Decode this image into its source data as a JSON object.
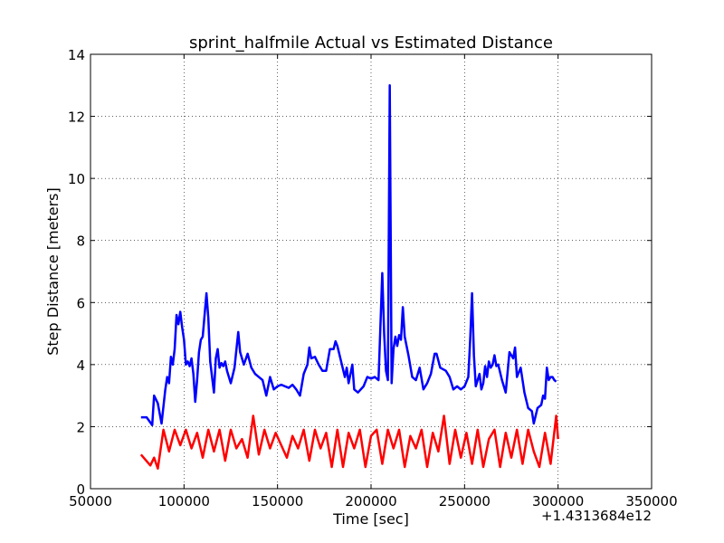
{
  "chart_data": {
    "type": "line",
    "title": "sprint_halfmile Actual vs Estimated Distance",
    "xlabel": "Time [sec]",
    "ylabel": "Step Distance [meters]",
    "x_offset_label": "+1.4313684e12",
    "xlim": [
      50000,
      350000
    ],
    "xticks": [
      50000,
      100000,
      150000,
      200000,
      250000,
      300000,
      350000
    ],
    "ylim": [
      0,
      14
    ],
    "yticks": [
      0,
      2,
      4,
      6,
      8,
      10,
      12,
      14
    ],
    "grid": true,
    "series": [
      {
        "color": "#0000ff",
        "x": [
          77000,
          80000,
          83000,
          84000,
          86000,
          88000,
          90000,
          91000,
          92000,
          93000,
          94000,
          95000,
          96000,
          97000,
          98000,
          99000,
          100000,
          101000,
          102000,
          103000,
          104000,
          105000,
          106000,
          107000,
          108000,
          109000,
          110000,
          111000,
          112000,
          113000,
          114000,
          116000,
          117000,
          118000,
          119000,
          120000,
          121000,
          122000,
          123000,
          125000,
          127000,
          129000,
          130000,
          132000,
          134000,
          136000,
          138000,
          140000,
          142000,
          144000,
          146000,
          148000,
          150000,
          152000,
          154000,
          156000,
          158000,
          160000,
          162000,
          164000,
          166000,
          167000,
          168000,
          170000,
          172000,
          174000,
          176000,
          178000,
          180000,
          181000,
          182000,
          184000,
          186000,
          187000,
          188000,
          190000,
          191000,
          193000,
          196000,
          198000,
          200000,
          202000,
          204000,
          206000,
          207000,
          208000,
          209000,
          210000,
          211000,
          212000,
          213000,
          214000,
          215000,
          216000,
          217000,
          218000,
          220000,
          222000,
          224000,
          226000,
          228000,
          230000,
          232000,
          234000,
          235000,
          237000,
          240000,
          242000,
          244000,
          246000,
          248000,
          250000,
          252000,
          253000,
          254000,
          255000,
          256000,
          258000,
          259000,
          260000,
          261000,
          262000,
          263000,
          264000,
          265000,
          266000,
          267000,
          268000,
          270000,
          272000,
          274000,
          276000,
          277000,
          278000,
          280000,
          282000,
          284000,
          286000,
          287000,
          289000,
          291000,
          292000,
          293000,
          294000,
          295000,
          296000,
          297000,
          298000,
          299000
        ],
        "values": [
          2.3,
          2.3,
          2.05,
          3.0,
          2.75,
          2.1,
          3.2,
          3.6,
          3.4,
          4.25,
          4.0,
          4.5,
          5.6,
          5.3,
          5.7,
          5.2,
          4.8,
          4.0,
          4.1,
          3.95,
          4.2,
          3.7,
          2.8,
          3.5,
          4.4,
          4.8,
          4.9,
          5.6,
          6.3,
          5.5,
          4.1,
          3.1,
          4.2,
          4.5,
          3.9,
          4.05,
          3.95,
          4.1,
          3.8,
          3.4,
          3.9,
          5.05,
          4.4,
          4.0,
          4.35,
          3.9,
          3.7,
          3.6,
          3.5,
          3.0,
          3.6,
          3.2,
          3.3,
          3.35,
          3.3,
          3.25,
          3.35,
          3.2,
          3.0,
          3.7,
          4.0,
          4.55,
          4.2,
          4.25,
          4.0,
          3.8,
          3.8,
          4.5,
          4.5,
          4.75,
          4.6,
          4.1,
          3.6,
          3.9,
          3.4,
          4.0,
          3.2,
          3.1,
          3.3,
          3.6,
          3.55,
          3.6,
          3.5,
          6.95,
          5.0,
          3.8,
          3.5,
          13.0,
          3.4,
          4.5,
          4.9,
          4.6,
          4.95,
          4.8,
          5.85,
          4.9,
          4.3,
          3.6,
          3.5,
          3.9,
          3.2,
          3.4,
          3.7,
          4.35,
          4.35,
          3.9,
          3.8,
          3.6,
          3.2,
          3.3,
          3.2,
          3.3,
          3.6,
          4.8,
          6.3,
          4.3,
          3.3,
          3.7,
          3.2,
          3.4,
          3.95,
          3.6,
          4.1,
          3.9,
          4.0,
          4.3,
          3.95,
          4.0,
          3.5,
          3.1,
          4.4,
          4.2,
          4.55,
          3.6,
          3.9,
          3.1,
          2.6,
          2.5,
          2.1,
          2.6,
          2.7,
          3.0,
          2.9,
          3.9,
          3.5,
          3.6,
          3.6,
          3.5,
          3.45
        ]
      },
      {
        "color": "#ff0000",
        "x": [
          77000,
          82000,
          84000,
          86000,
          89000,
          92000,
          95000,
          98000,
          101000,
          104000,
          107000,
          110000,
          113000,
          116000,
          119000,
          122000,
          125000,
          128000,
          131000,
          134000,
          137000,
          140000,
          143000,
          146000,
          149000,
          152000,
          155000,
          158000,
          161000,
          164000,
          167000,
          170000,
          173000,
          176000,
          179000,
          182000,
          185000,
          188000,
          191000,
          194000,
          197000,
          200000,
          203000,
          206000,
          209000,
          212000,
          215000,
          218000,
          221000,
          224000,
          227000,
          230000,
          233000,
          236000,
          239000,
          242000,
          245000,
          248000,
          251000,
          254000,
          257000,
          260000,
          263000,
          266000,
          269000,
          272000,
          275000,
          278000,
          281000,
          284000,
          287000,
          290000,
          293000,
          296000,
          299000,
          300000
        ],
        "values": [
          1.1,
          0.75,
          1.0,
          0.65,
          1.9,
          1.2,
          1.9,
          1.4,
          1.9,
          1.3,
          1.8,
          1.0,
          1.9,
          1.2,
          1.9,
          0.9,
          1.9,
          1.3,
          1.6,
          1.0,
          2.35,
          1.1,
          1.9,
          1.3,
          1.8,
          1.4,
          1.0,
          1.7,
          1.3,
          1.9,
          0.9,
          1.9,
          1.3,
          1.8,
          0.7,
          1.9,
          0.7,
          1.8,
          1.3,
          1.9,
          0.7,
          1.7,
          1.9,
          0.8,
          1.9,
          1.3,
          1.9,
          0.7,
          1.7,
          1.3,
          1.9,
          0.7,
          1.8,
          1.2,
          2.35,
          0.8,
          1.9,
          1.0,
          1.8,
          0.8,
          1.9,
          0.7,
          1.6,
          1.9,
          0.7,
          1.8,
          1.0,
          1.9,
          0.8,
          1.9,
          1.2,
          0.7,
          1.8,
          0.8,
          2.35,
          1.6
        ]
      }
    ]
  }
}
